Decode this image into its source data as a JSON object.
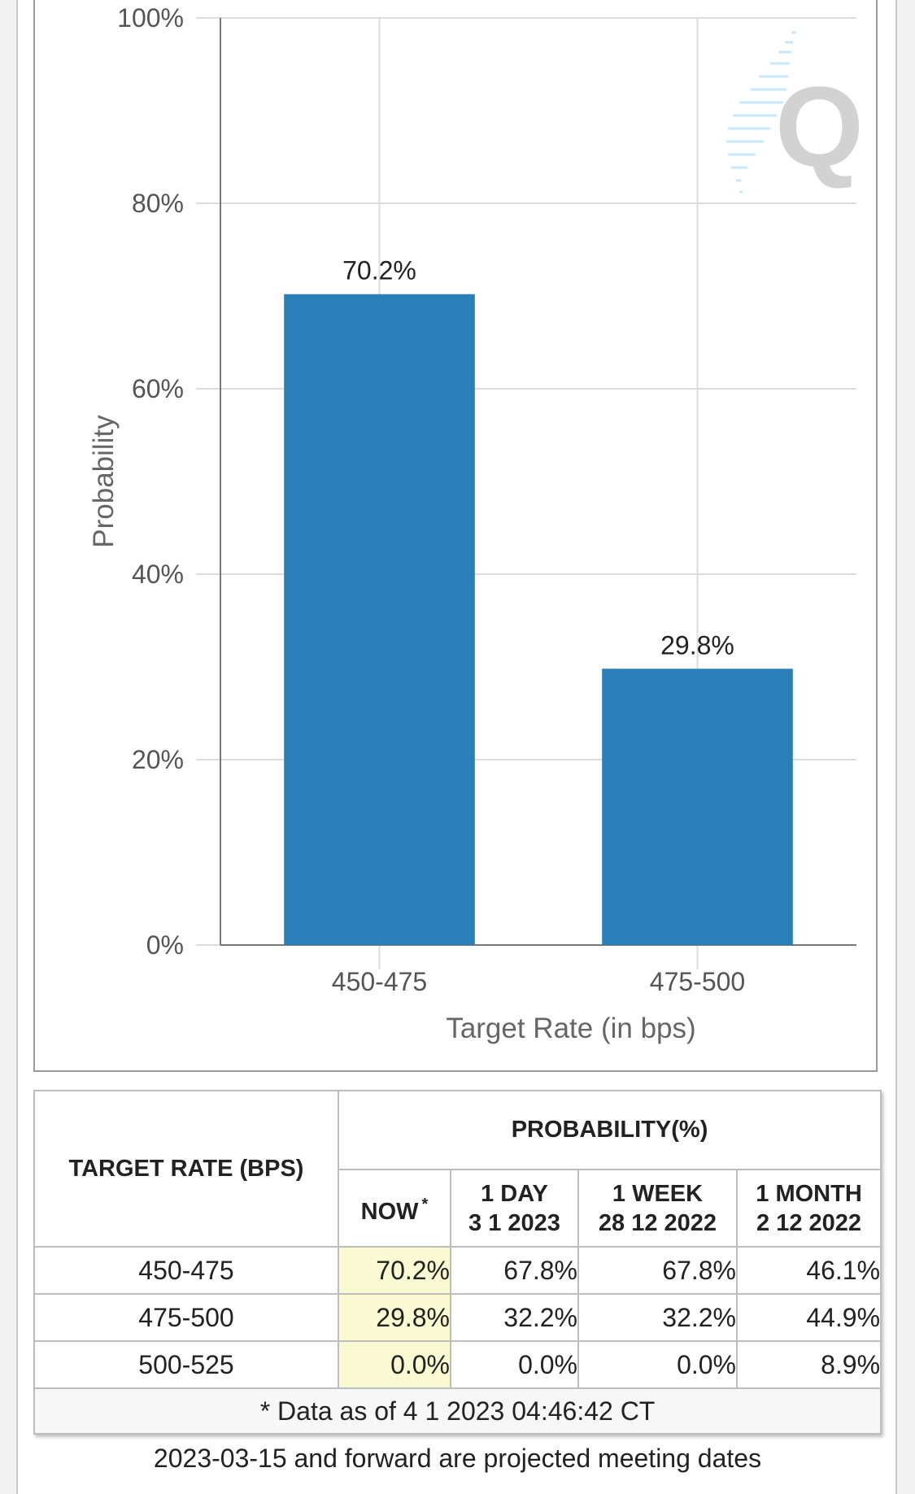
{
  "chart_data": {
    "type": "bar",
    "categories": [
      "450-475",
      "475-500"
    ],
    "values": [
      70.2,
      29.8
    ],
    "data_labels": [
      "70.2%",
      "29.8%"
    ],
    "xlabel": "Target Rate (in bps)",
    "ylabel": "Probability",
    "ylim": [
      0,
      100
    ],
    "yticks": [
      "0%",
      "20%",
      "40%",
      "60%",
      "80%",
      "100%"
    ],
    "grid": true,
    "bar_color": "#2980b9"
  },
  "table": {
    "header_target": "TARGET RATE (BPS)",
    "header_prob": "PROBABILITY(%)",
    "col_now": "NOW",
    "col_now_mark": "*",
    "col_day_l1": "1 DAY",
    "col_day_l2": "3 1 2023",
    "col_week_l1": "1 WEEK",
    "col_week_l2": "28 12 2022",
    "col_month_l1": "1 MONTH",
    "col_month_l2": "2 12 2022",
    "rows": [
      {
        "rate": "450-475",
        "now": "70.2%",
        "day": "67.8%",
        "week": "67.8%",
        "month": "46.1%"
      },
      {
        "rate": "475-500",
        "now": "29.8%",
        "day": "32.2%",
        "week": "32.2%",
        "month": "44.9%"
      },
      {
        "rate": "500-525",
        "now": "0.0%",
        "day": "0.0%",
        "week": "0.0%",
        "month": "8.9%"
      }
    ],
    "footnote": "* Data as of 4 1 2023 04:46:42 CT"
  },
  "note": "2023-03-15 and forward are projected meeting dates"
}
